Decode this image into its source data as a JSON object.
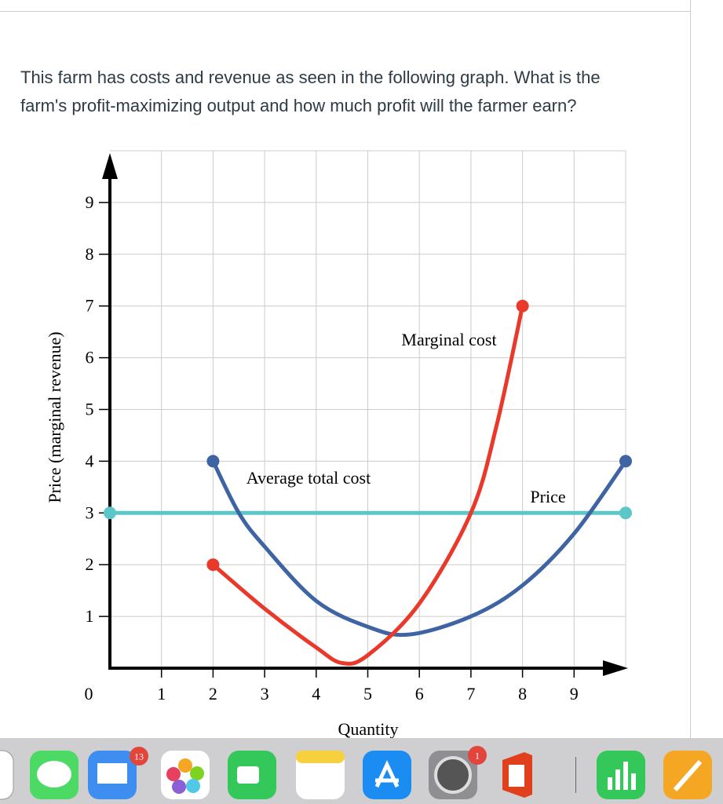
{
  "question": [
    "This farm has costs and revenue as seen in the following graph. What is the",
    "farm's profit-maximizing output and how much profit will the farmer earn?"
  ],
  "chart_data": {
    "type": "line",
    "x_label": "Quantity",
    "y_label": "Price (marginal revenue)",
    "xlim": [
      0,
      10
    ],
    "ylim": [
      0,
      10
    ],
    "xticks": [
      1,
      2,
      3,
      4,
      5,
      6,
      7,
      8,
      9
    ],
    "yticks": [
      0,
      1,
      2,
      3,
      4,
      5,
      6,
      7,
      8,
      9
    ],
    "grid": true,
    "series": [
      {
        "name": "Price",
        "color": "#5cc6c9",
        "x": [
          0,
          10
        ],
        "values": [
          3,
          3
        ]
      },
      {
        "name": "Average total cost",
        "color": "#3f64a3",
        "x": [
          2,
          2.5,
          3,
          4,
          5,
          5.8,
          7,
          8,
          9,
          10
        ],
        "values": [
          4,
          3,
          2.35,
          1.3,
          0.8,
          0.65,
          1.0,
          1.6,
          2.6,
          4
        ]
      },
      {
        "name": "Marginal cost",
        "color": "#e8392b",
        "x": [
          2,
          3,
          4,
          4.5,
          5,
          6,
          7,
          7.5,
          8
        ],
        "values": [
          2,
          1.15,
          0.4,
          0.1,
          0.25,
          1.25,
          3,
          4.7,
          7
        ]
      }
    ]
  },
  "dock": {
    "mail_badge": "13",
    "settings_badge": "1"
  }
}
